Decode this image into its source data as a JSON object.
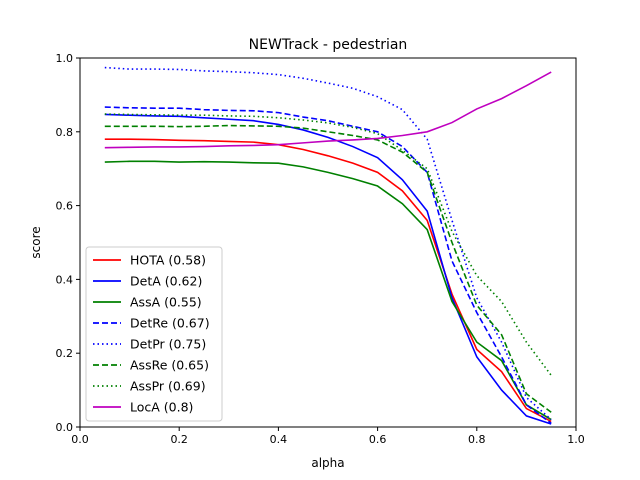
{
  "chart_data": {
    "type": "line",
    "title": "NEWTrack - pedestrian",
    "xlabel": "alpha",
    "ylabel": "score",
    "xlim": [
      0,
      1
    ],
    "ylim": [
      0,
      1
    ],
    "xticks": [
      "0.0",
      "0.2",
      "0.4",
      "0.6",
      "0.8",
      "1.0"
    ],
    "yticks": [
      "0.0",
      "0.2",
      "0.4",
      "0.6",
      "0.8",
      "1.0"
    ],
    "grid": false,
    "legend_position": "lower-left",
    "x": [
      0.05,
      0.1,
      0.15,
      0.2,
      0.25,
      0.3,
      0.35,
      0.4,
      0.45,
      0.5,
      0.55,
      0.6,
      0.65,
      0.7,
      0.75,
      0.8,
      0.85,
      0.9,
      0.95
    ],
    "series": [
      {
        "name": "HOTA (0.58)",
        "color": "#ff0000",
        "style": "solid",
        "values": [
          0.78,
          0.78,
          0.779,
          0.777,
          0.776,
          0.774,
          0.772,
          0.765,
          0.752,
          0.735,
          0.715,
          0.69,
          0.64,
          0.56,
          0.36,
          0.21,
          0.15,
          0.05,
          0.015
        ]
      },
      {
        "name": "DetA (0.62)",
        "color": "#0000ff",
        "style": "solid",
        "values": [
          0.847,
          0.845,
          0.843,
          0.842,
          0.838,
          0.834,
          0.83,
          0.82,
          0.805,
          0.785,
          0.76,
          0.73,
          0.67,
          0.585,
          0.35,
          0.19,
          0.1,
          0.03,
          0.008
        ]
      },
      {
        "name": "AssA (0.55)",
        "color": "#008000",
        "style": "solid",
        "values": [
          0.718,
          0.72,
          0.72,
          0.718,
          0.719,
          0.718,
          0.716,
          0.715,
          0.705,
          0.69,
          0.673,
          0.653,
          0.605,
          0.535,
          0.34,
          0.23,
          0.18,
          0.06,
          0.02
        ]
      },
      {
        "name": "DetRe (0.67)",
        "color": "#0000ff",
        "style": "dashed",
        "values": [
          0.867,
          0.865,
          0.864,
          0.864,
          0.86,
          0.858,
          0.857,
          0.852,
          0.84,
          0.83,
          0.815,
          0.8,
          0.76,
          0.69,
          0.45,
          0.31,
          0.19,
          0.06,
          0.01
        ]
      },
      {
        "name": "DetPr (0.75)",
        "color": "#0000ff",
        "style": "dotted",
        "values": [
          0.974,
          0.97,
          0.97,
          0.969,
          0.965,
          0.963,
          0.96,
          0.955,
          0.945,
          0.932,
          0.918,
          0.895,
          0.86,
          0.78,
          0.56,
          0.35,
          0.23,
          0.08,
          0.02
        ]
      },
      {
        "name": "AssRe (0.65)",
        "color": "#008000",
        "style": "dashed",
        "values": [
          0.815,
          0.815,
          0.815,
          0.814,
          0.815,
          0.817,
          0.816,
          0.815,
          0.81,
          0.8,
          0.79,
          0.778,
          0.745,
          0.69,
          0.5,
          0.33,
          0.25,
          0.09,
          0.04
        ]
      },
      {
        "name": "AssPr (0.69)",
        "color": "#008000",
        "style": "dotted",
        "values": [
          0.848,
          0.847,
          0.846,
          0.845,
          0.845,
          0.843,
          0.842,
          0.838,
          0.832,
          0.824,
          0.812,
          0.795,
          0.75,
          0.7,
          0.53,
          0.41,
          0.34,
          0.23,
          0.14
        ]
      },
      {
        "name": "LocA (0.8)",
        "color": "#bf00bf",
        "style": "solid",
        "values": [
          0.757,
          0.758,
          0.759,
          0.759,
          0.76,
          0.762,
          0.763,
          0.765,
          0.77,
          0.775,
          0.778,
          0.782,
          0.79,
          0.8,
          0.825,
          0.862,
          0.89,
          0.925,
          0.962
        ]
      }
    ]
  }
}
